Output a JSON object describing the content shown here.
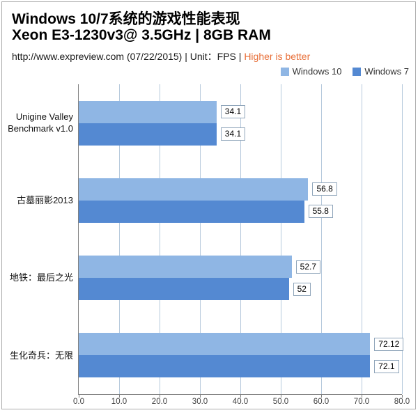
{
  "header": {
    "title_line1": "Windows 10/7系统的游戏性能表现",
    "title_line2": "Xeon E3-1230v3@ 3.5GHz | 8GB RAM",
    "source_text": "http://www.expreview.com (07/22/2015) | Unit：FPS | ",
    "highlight_text": "Higher is better",
    "highlight_color": "#E8703A"
  },
  "chart_data": {
    "type": "bar",
    "orientation": "horizontal",
    "unit": "FPS",
    "title": "Windows 10/7系统的游戏性能表现",
    "subtitle": "Xeon E3-1230v3@ 3.5GHz | 8GB RAM",
    "categories": [
      "Unigine Valley Benchmark v1.0",
      "古墓丽影2013",
      "地铁：最后之光",
      "生化奇兵：无限"
    ],
    "series": [
      {
        "name": "Windows 10",
        "color": "#8FB6E4",
        "values": [
          34.1,
          56.8,
          52.7,
          72.12
        ],
        "labels": [
          "34.1",
          "56.8",
          "52.7",
          "72.12"
        ]
      },
      {
        "name": "Windows 7",
        "color": "#5489D2",
        "values": [
          34.1,
          55.8,
          52.0,
          72.1
        ],
        "labels": [
          "34.1",
          "55.8",
          "52",
          "72.1"
        ]
      }
    ],
    "xlim": [
      0,
      80
    ],
    "tick_values": [
      0,
      10,
      20,
      30,
      40,
      50,
      60,
      70,
      80
    ],
    "tick_labels": [
      "0.0",
      "10.0",
      "20.0",
      "30.0",
      "40.0",
      "50.0",
      "60.0",
      "70.0",
      "80.0"
    ],
    "grid": true,
    "legend_position": "top-right",
    "xlabel": "",
    "ylabel": ""
  },
  "colors": {
    "grid_line": "#B6C9DC",
    "axis_line": "#7F7F7F",
    "frame_border": "#ADADAD",
    "value_label_border": "#8FA5BA",
    "background": "#FFFFFF"
  }
}
